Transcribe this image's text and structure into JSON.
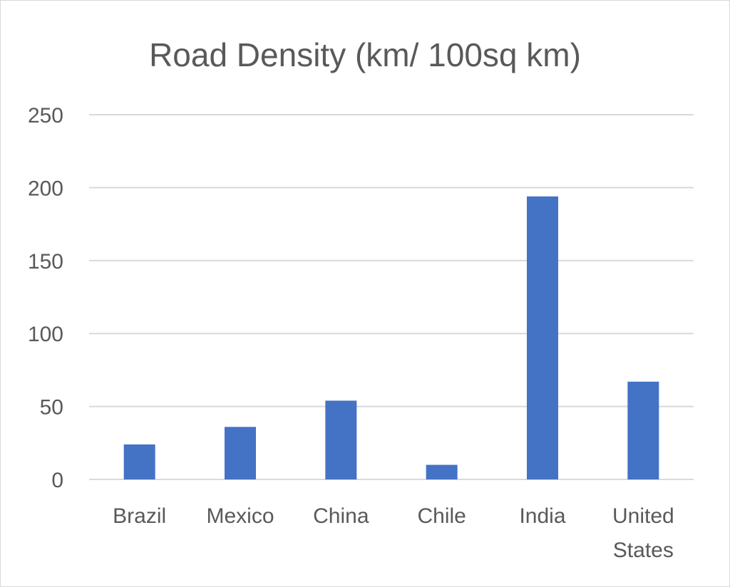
{
  "chart_data": {
    "type": "bar",
    "title": "Road Density (km/ 100sq km)",
    "categories": [
      [
        "Brazil"
      ],
      [
        "Mexico"
      ],
      [
        "China"
      ],
      [
        "Chile"
      ],
      [
        "India"
      ],
      [
        "United",
        "States"
      ]
    ],
    "values": [
      24,
      36,
      54,
      10,
      194,
      67
    ],
    "ylim": [
      0,
      250
    ],
    "yticks": [
      0,
      50,
      100,
      150,
      200,
      250
    ],
    "grid": true,
    "legend": "none",
    "bar_color": "#4472c4"
  }
}
